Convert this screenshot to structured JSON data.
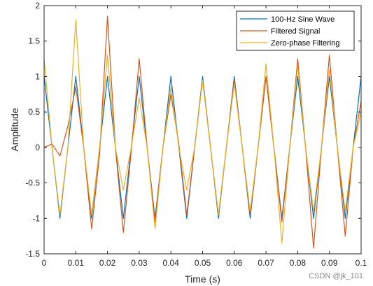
{
  "chart_data": {
    "type": "line",
    "xlabel": "Time (s)",
    "ylabel": "Amplitude",
    "xlim": [
      0,
      0.1
    ],
    "ylim": [
      -1.5,
      2
    ],
    "x_ticks": [
      "0",
      "0.01",
      "0.02",
      "0.03",
      "0.04",
      "0.05",
      "0.06",
      "0.07",
      "0.08",
      "0.09",
      "0.1"
    ],
    "y_ticks": [
      "-1.5",
      "-1",
      "-0.5",
      "0",
      "0.5",
      "1",
      "1.5",
      "2"
    ],
    "grid": false,
    "legend_position": "top-right",
    "x": [
      0,
      0.0025,
      0.005,
      0.0075,
      0.01,
      0.0125,
      0.015,
      0.0175,
      0.02,
      0.0225,
      0.025,
      0.0275,
      0.03,
      0.0325,
      0.035,
      0.0375,
      0.04,
      0.0425,
      0.045,
      0.0475,
      0.05,
      0.0525,
      0.055,
      0.0575,
      0.06,
      0.0625,
      0.065,
      0.0675,
      0.07,
      0.0725,
      0.075,
      0.0775,
      0.08,
      0.0825,
      0.085,
      0.0875,
      0.09,
      0.0925,
      0.095,
      0.0975,
      0.1
    ],
    "series": [
      {
        "name": "100-Hz Sine Wave",
        "color": "#0072BD",
        "values": [
          1,
          0,
          -1,
          0,
          1,
          0,
          -1,
          0,
          1,
          0,
          -1,
          0,
          1,
          0,
          -1,
          0,
          1,
          0,
          -1,
          0,
          1,
          0,
          -1,
          0,
          1,
          0,
          -1,
          0,
          1,
          0,
          -1,
          0,
          1,
          0,
          -1,
          0,
          1,
          0,
          -1,
          0,
          1
        ]
      },
      {
        "name": "Filtered Signal",
        "color": "#D95319",
        "values": [
          0,
          0.05,
          -0.12,
          0.3,
          0.85,
          0,
          -1.15,
          -0.1,
          1.85,
          0,
          -1.2,
          -0.05,
          1.25,
          0,
          -1.05,
          0,
          0.75,
          0.05,
          -0.95,
          0,
          0.95,
          0,
          -0.95,
          0,
          0.95,
          0,
          -0.95,
          0,
          1.0,
          0,
          -1.05,
          0,
          1.25,
          0,
          -1.42,
          0,
          1.3,
          0,
          -1.25,
          0,
          0.65
        ]
      },
      {
        "name": "Zero-phase Filtering",
        "color": "#EDB120",
        "values": [
          1.25,
          0,
          -0.95,
          0,
          1.8,
          0,
          -0.95,
          0,
          1.3,
          0,
          -0.6,
          0,
          0.7,
          0,
          -1.15,
          0,
          0.85,
          0,
          -0.6,
          0,
          0.95,
          0,
          -0.95,
          0,
          0.9,
          0,
          -0.9,
          0,
          1.18,
          0,
          -1.35,
          0,
          1.15,
          0,
          -0.9,
          0,
          1.1,
          0,
          -0.9,
          0,
          0.5
        ]
      }
    ]
  },
  "watermark": "CSDN @jk_101"
}
